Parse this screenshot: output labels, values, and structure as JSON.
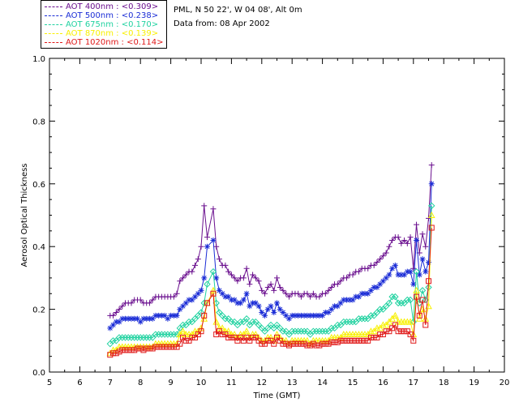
{
  "info": {
    "site": "PML, N 50 22', W 04 08', Alt 0m",
    "date": "Data from: 08 Apr 2002"
  },
  "chart_data": {
    "type": "line",
    "xlabel": "Time (GMT)",
    "ylabel": "Aerosol Optical Thickness",
    "xlim": [
      5,
      20
    ],
    "ylim": [
      0.0,
      1.0
    ],
    "xticks": [
      "5",
      "6",
      "7",
      "8",
      "9",
      "10",
      "11",
      "12",
      "13",
      "14",
      "15",
      "16",
      "17",
      "18",
      "19",
      "20"
    ],
    "yticks": [
      "0.0",
      "0.2",
      "0.4",
      "0.6",
      "0.8",
      "1.0"
    ],
    "legend_position": "top-left",
    "grid": false,
    "x": [
      7.0,
      7.1,
      7.2,
      7.3,
      7.4,
      7.5,
      7.6,
      7.7,
      7.8,
      7.9,
      8.0,
      8.1,
      8.2,
      8.3,
      8.4,
      8.5,
      8.6,
      8.7,
      8.8,
      8.9,
      9.0,
      9.1,
      9.2,
      9.3,
      9.4,
      9.5,
      9.6,
      9.7,
      9.8,
      9.9,
      10.0,
      10.1,
      10.2,
      10.4,
      10.5,
      10.6,
      10.7,
      10.8,
      10.9,
      11.0,
      11.1,
      11.2,
      11.3,
      11.4,
      11.5,
      11.6,
      11.7,
      11.8,
      11.9,
      12.0,
      12.1,
      12.2,
      12.3,
      12.4,
      12.5,
      12.6,
      12.7,
      12.8,
      12.9,
      13.0,
      13.1,
      13.2,
      13.3,
      13.4,
      13.5,
      13.6,
      13.7,
      13.8,
      13.9,
      14.0,
      14.1,
      14.2,
      14.3,
      14.4,
      14.5,
      14.6,
      14.7,
      14.8,
      14.9,
      15.0,
      15.1,
      15.2,
      15.3,
      15.4,
      15.5,
      15.6,
      15.7,
      15.8,
      15.9,
      16.0,
      16.1,
      16.2,
      16.3,
      16.4,
      16.5,
      16.6,
      16.7,
      16.8,
      16.9,
      17.0,
      17.1,
      17.2,
      17.3,
      17.4,
      17.5,
      17.6
    ],
    "series": [
      {
        "name": "AOT  400nm : <0.309>",
        "color": "#6a0f8e",
        "marker": "+",
        "values": [
          0.18,
          0.18,
          0.19,
          0.2,
          0.21,
          0.22,
          0.22,
          0.22,
          0.23,
          0.23,
          0.23,
          0.22,
          0.22,
          0.22,
          0.23,
          0.24,
          0.24,
          0.24,
          0.24,
          0.24,
          0.24,
          0.24,
          0.25,
          0.29,
          0.3,
          0.31,
          0.32,
          0.32,
          0.34,
          0.36,
          0.4,
          0.53,
          0.43,
          0.52,
          0.4,
          0.36,
          0.34,
          0.34,
          0.32,
          0.31,
          0.3,
          0.29,
          0.3,
          0.3,
          0.33,
          0.28,
          0.31,
          0.3,
          0.29,
          0.26,
          0.25,
          0.27,
          0.28,
          0.26,
          0.3,
          0.27,
          0.26,
          0.25,
          0.24,
          0.25,
          0.25,
          0.25,
          0.24,
          0.25,
          0.25,
          0.24,
          0.25,
          0.24,
          0.24,
          0.25,
          0.25,
          0.26,
          0.27,
          0.28,
          0.28,
          0.29,
          0.3,
          0.3,
          0.31,
          0.31,
          0.32,
          0.32,
          0.33,
          0.33,
          0.33,
          0.34,
          0.34,
          0.35,
          0.36,
          0.37,
          0.38,
          0.4,
          0.42,
          0.43,
          0.43,
          0.41,
          0.42,
          0.41,
          0.43,
          0.33,
          0.47,
          0.38,
          0.44,
          0.4,
          0.49,
          0.66
        ]
      },
      {
        "name": "AOT  500nm : <0.238>",
        "color": "#1a2cd6",
        "marker": "*",
        "values": [
          0.14,
          0.15,
          0.16,
          0.16,
          0.17,
          0.17,
          0.17,
          0.17,
          0.17,
          0.17,
          0.16,
          0.17,
          0.17,
          0.17,
          0.17,
          0.18,
          0.18,
          0.18,
          0.18,
          0.17,
          0.18,
          0.18,
          0.18,
          0.2,
          0.21,
          0.22,
          0.23,
          0.23,
          0.24,
          0.25,
          0.26,
          0.3,
          0.4,
          0.42,
          0.3,
          0.26,
          0.25,
          0.24,
          0.24,
          0.23,
          0.23,
          0.22,
          0.22,
          0.23,
          0.25,
          0.21,
          0.22,
          0.22,
          0.21,
          0.19,
          0.18,
          0.2,
          0.21,
          0.19,
          0.22,
          0.2,
          0.19,
          0.18,
          0.17,
          0.18,
          0.18,
          0.18,
          0.18,
          0.18,
          0.18,
          0.18,
          0.18,
          0.18,
          0.18,
          0.18,
          0.19,
          0.19,
          0.2,
          0.21,
          0.21,
          0.22,
          0.23,
          0.23,
          0.23,
          0.23,
          0.24,
          0.24,
          0.25,
          0.25,
          0.25,
          0.26,
          0.27,
          0.27,
          0.28,
          0.29,
          0.3,
          0.31,
          0.33,
          0.34,
          0.31,
          0.31,
          0.31,
          0.32,
          0.32,
          0.28,
          0.42,
          0.31,
          0.36,
          0.32,
          0.35,
          0.6
        ]
      },
      {
        "name": "AOT  675nm : <0.170>",
        "color": "#20d2a0",
        "marker": "diamond",
        "values": [
          0.09,
          0.1,
          0.1,
          0.11,
          0.11,
          0.11,
          0.11,
          0.11,
          0.11,
          0.11,
          0.11,
          0.11,
          0.11,
          0.11,
          0.11,
          0.12,
          0.12,
          0.12,
          0.12,
          0.12,
          0.12,
          0.12,
          0.12,
          0.14,
          0.15,
          0.15,
          0.16,
          0.16,
          0.17,
          0.18,
          0.19,
          0.22,
          0.28,
          0.32,
          0.22,
          0.19,
          0.18,
          0.17,
          0.17,
          0.16,
          0.16,
          0.15,
          0.16,
          0.16,
          0.17,
          0.15,
          0.16,
          0.16,
          0.15,
          0.14,
          0.13,
          0.14,
          0.15,
          0.14,
          0.15,
          0.14,
          0.13,
          0.13,
          0.12,
          0.13,
          0.13,
          0.13,
          0.13,
          0.13,
          0.13,
          0.12,
          0.13,
          0.13,
          0.13,
          0.13,
          0.13,
          0.13,
          0.14,
          0.14,
          0.15,
          0.15,
          0.16,
          0.16,
          0.16,
          0.16,
          0.16,
          0.17,
          0.17,
          0.17,
          0.17,
          0.18,
          0.18,
          0.19,
          0.2,
          0.2,
          0.21,
          0.22,
          0.24,
          0.24,
          0.22,
          0.22,
          0.22,
          0.23,
          0.23,
          0.16,
          0.32,
          0.22,
          0.26,
          0.23,
          0.27,
          0.53
        ]
      },
      {
        "name": "AOT  870nm : <0.139>",
        "color": "#f8f000",
        "marker": "triangle",
        "values": [
          0.06,
          0.07,
          0.07,
          0.08,
          0.08,
          0.08,
          0.08,
          0.08,
          0.08,
          0.08,
          0.08,
          0.08,
          0.08,
          0.08,
          0.08,
          0.09,
          0.09,
          0.09,
          0.09,
          0.09,
          0.09,
          0.09,
          0.09,
          0.12,
          0.13,
          0.12,
          0.12,
          0.12,
          0.13,
          0.13,
          0.14,
          0.17,
          0.22,
          0.26,
          0.16,
          0.14,
          0.14,
          0.13,
          0.13,
          0.12,
          0.12,
          0.11,
          0.12,
          0.12,
          0.13,
          0.11,
          0.12,
          0.12,
          0.11,
          0.1,
          0.1,
          0.11,
          0.11,
          0.1,
          0.12,
          0.11,
          0.1,
          0.1,
          0.09,
          0.1,
          0.1,
          0.1,
          0.1,
          0.1,
          0.1,
          0.09,
          0.1,
          0.1,
          0.1,
          0.1,
          0.1,
          0.1,
          0.11,
          0.11,
          0.11,
          0.11,
          0.12,
          0.12,
          0.12,
          0.12,
          0.12,
          0.12,
          0.12,
          0.12,
          0.12,
          0.13,
          0.13,
          0.14,
          0.14,
          0.15,
          0.15,
          0.16,
          0.17,
          0.18,
          0.16,
          0.16,
          0.16,
          0.16,
          0.16,
          0.12,
          0.26,
          0.17,
          0.2,
          0.17,
          0.21,
          0.5
        ]
      },
      {
        "name": "AOT 1020nm : <0.114>",
        "color": "#e01818",
        "marker": "square",
        "values": [
          0.055,
          0.06,
          0.06,
          0.065,
          0.07,
          0.07,
          0.07,
          0.07,
          0.07,
          0.075,
          0.075,
          0.07,
          0.075,
          0.075,
          0.075,
          0.08,
          0.08,
          0.08,
          0.08,
          0.08,
          0.08,
          0.08,
          0.08,
          0.09,
          0.11,
          0.1,
          0.1,
          0.11,
          0.11,
          0.12,
          0.13,
          0.18,
          0.22,
          0.25,
          0.12,
          0.13,
          0.12,
          0.12,
          0.11,
          0.11,
          0.11,
          0.1,
          0.11,
          0.1,
          0.11,
          0.1,
          0.11,
          0.11,
          0.1,
          0.09,
          0.09,
          0.1,
          0.1,
          0.09,
          0.11,
          0.1,
          0.09,
          0.09,
          0.085,
          0.09,
          0.09,
          0.09,
          0.09,
          0.09,
          0.085,
          0.085,
          0.09,
          0.085,
          0.085,
          0.09,
          0.09,
          0.09,
          0.095,
          0.095,
          0.095,
          0.1,
          0.1,
          0.1,
          0.1,
          0.1,
          0.1,
          0.1,
          0.1,
          0.1,
          0.1,
          0.11,
          0.11,
          0.11,
          0.12,
          0.12,
          0.13,
          0.13,
          0.14,
          0.15,
          0.13,
          0.13,
          0.13,
          0.13,
          0.12,
          0.1,
          0.24,
          0.18,
          0.23,
          0.15,
          0.29,
          0.46
        ]
      }
    ]
  }
}
